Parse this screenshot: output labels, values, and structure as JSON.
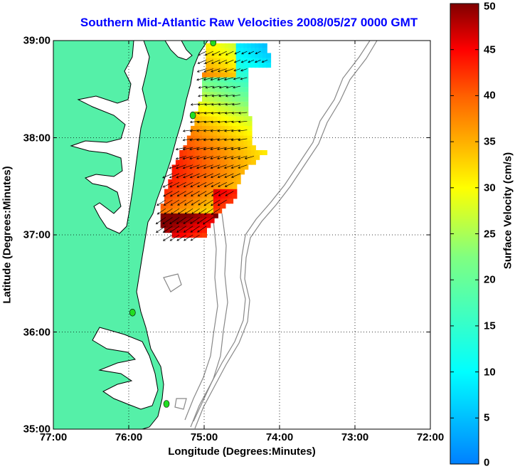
{
  "title": "Southern Mid-Atlantic Raw Velocities 2008/05/27 0000 GMT",
  "xlabel": "Longitude (Degrees:Minutes)",
  "ylabel": "Latitude (Degrees:Minutes)",
  "colorbar_label": "Surface Velocity (cm/s)",
  "x_ticks": [
    "77:00",
    "76:00",
    "75:00",
    "74:00",
    "73:00",
    "72:00"
  ],
  "y_ticks": [
    "39:00",
    "38:00",
    "37:00",
    "36:00",
    "35:00"
  ],
  "colorbar_ticks": [
    "50",
    "45",
    "40",
    "35",
    "30",
    "25",
    "20",
    "15",
    "10",
    "5",
    "0"
  ],
  "map": {
    "lon_range": [
      -77,
      -72
    ],
    "lat_range": [
      35,
      39
    ],
    "grid": true,
    "colors": {
      "land": "#55f0a8",
      "water": "#ffffff",
      "coastline": "#000000",
      "bathymetry": "#888888",
      "site_marker": "#22dd22",
      "arrows": "#000000"
    },
    "velocity_range_cm_s": [
      0,
      50
    ],
    "colormap": "jet",
    "radar_sites": [
      {
        "lon": -74.88,
        "lat": 38.98
      },
      {
        "lon": -75.15,
        "lat": 38.23
      },
      {
        "lon": -75.95,
        "lat": 36.2
      },
      {
        "lon": -75.5,
        "lat": 35.26
      }
    ]
  }
}
